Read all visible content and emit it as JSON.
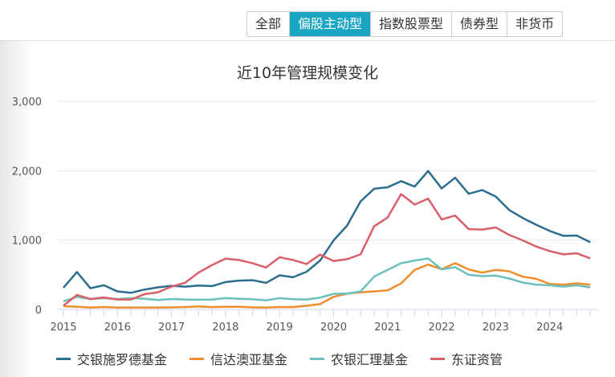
{
  "tabs": [
    "全部",
    "偏股主动型",
    "指数股票型",
    "债券型",
    "非货币"
  ],
  "active_tab": 1,
  "colors": {
    "active_tab": "#1aa6c2"
  },
  "chart_data": {
    "type": "line",
    "title": "近10年管理规模变化",
    "xlabel": "",
    "ylabel": "",
    "x_ticks": [
      "2015",
      "2016",
      "2017",
      "2018",
      "2019",
      "2020",
      "2021",
      "2022",
      "2023",
      "2024"
    ],
    "y_ticks": [
      "0",
      "1,000",
      "2,000",
      "3,000"
    ],
    "ylim": [
      0,
      3000
    ],
    "x_frequency": "quarterly, 2015Q1 to 2024Q4",
    "grid": true,
    "legend": "bottom",
    "series": [
      {
        "name": "交银施罗德基金",
        "color": "#2d6e8e",
        "values": [
          314,
          539,
          306,
          349,
          260,
          240,
          287,
          318,
          341,
          329,
          345,
          337,
          395,
          415,
          422,
          384,
          492,
          465,
          543,
          705,
          996,
          1209,
          1558,
          1740,
          1760,
          1849,
          1771,
          1996,
          1744,
          1899,
          1667,
          1721,
          1628,
          1434,
          1318,
          1221,
          1132,
          1062,
          1066,
          969
        ]
      },
      {
        "name": "信达澳亚基金",
        "color": "#ee8e2f",
        "values": [
          47,
          39,
          27,
          35,
          27,
          27,
          27,
          27,
          31,
          35,
          43,
          35,
          39,
          39,
          31,
          27,
          35,
          35,
          54,
          78,
          182,
          229,
          248,
          260,
          275,
          376,
          570,
          647,
          581,
          667,
          578,
          531,
          570,
          550,
          473,
          442,
          368,
          357,
          376,
          357
        ]
      },
      {
        "name": "农银汇理基金",
        "color": "#6cc0bb",
        "values": [
          116,
          182,
          151,
          163,
          151,
          163,
          155,
          136,
          151,
          143,
          140,
          143,
          163,
          155,
          147,
          132,
          163,
          147,
          143,
          171,
          225,
          229,
          260,
          473,
          570,
          667,
          705,
          736,
          578,
          609,
          500,
          481,
          488,
          446,
          388,
          357,
          349,
          329,
          349,
          318
        ]
      },
      {
        "name": "东证资管",
        "color": "#d9606a",
        "values": [
          54,
          209,
          151,
          174,
          143,
          143,
          221,
          248,
          329,
          384,
          531,
          640,
          733,
          713,
          667,
          605,
          752,
          713,
          655,
          791,
          698,
          725,
          795,
          1198,
          1326,
          1663,
          1512,
          1597,
          1298,
          1353,
          1159,
          1151,
          1182,
          1074,
          996,
          907,
          841,
          795,
          810,
          736
        ]
      }
    ]
  }
}
